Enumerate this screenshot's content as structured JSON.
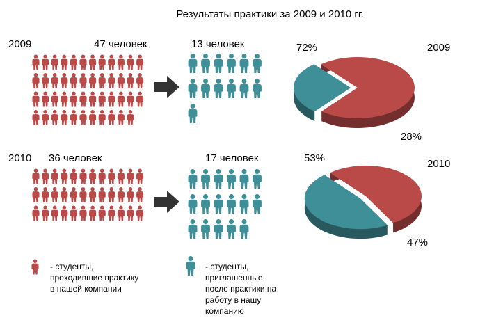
{
  "title": "Результаты практики за 2009 и 2010 гг.",
  "colors": {
    "interns": "#b94a48",
    "hired": "#3f8f99",
    "arrow": "#333333"
  },
  "icons": {
    "person": "person-icon",
    "arrow": "arrow-right-icon"
  },
  "rows": [
    {
      "year_label": "2009",
      "interns_label": "47 человек",
      "hired_label": "13 человек",
      "pie_year_label": "2009",
      "pie_labels": [
        "72%",
        "28%"
      ]
    },
    {
      "year_label": "2010",
      "interns_label": "36 человек",
      "hired_label": "17 человек",
      "pie_year_label": "2010",
      "pie_labels": [
        "53%",
        "47%"
      ]
    }
  ],
  "legend": {
    "interns": "- студенты, проходившие практику в нашей компании",
    "hired": "- студенты, приглашенные после практики на работу в нашу компанию"
  },
  "chart_data": [
    {
      "type": "pie",
      "title": "2009",
      "categories": [
        "студенты, проходившие практику в нашей компании",
        "студенты, приглашенные после практики на работу в нашу компанию"
      ],
      "values": [
        72,
        28
      ],
      "counts": {
        "interns": 47,
        "hired": 13
      },
      "colors": [
        "#b94a48",
        "#3f8f99"
      ]
    },
    {
      "type": "pie",
      "title": "2010",
      "categories": [
        "студенты, проходившие практику в нашей компании",
        "студенты, приглашенные после практики на работу в нашу компанию"
      ],
      "values": [
        53,
        47
      ],
      "counts": {
        "interns": 36,
        "hired": 17
      },
      "colors": [
        "#b94a48",
        "#3f8f99"
      ]
    }
  ]
}
